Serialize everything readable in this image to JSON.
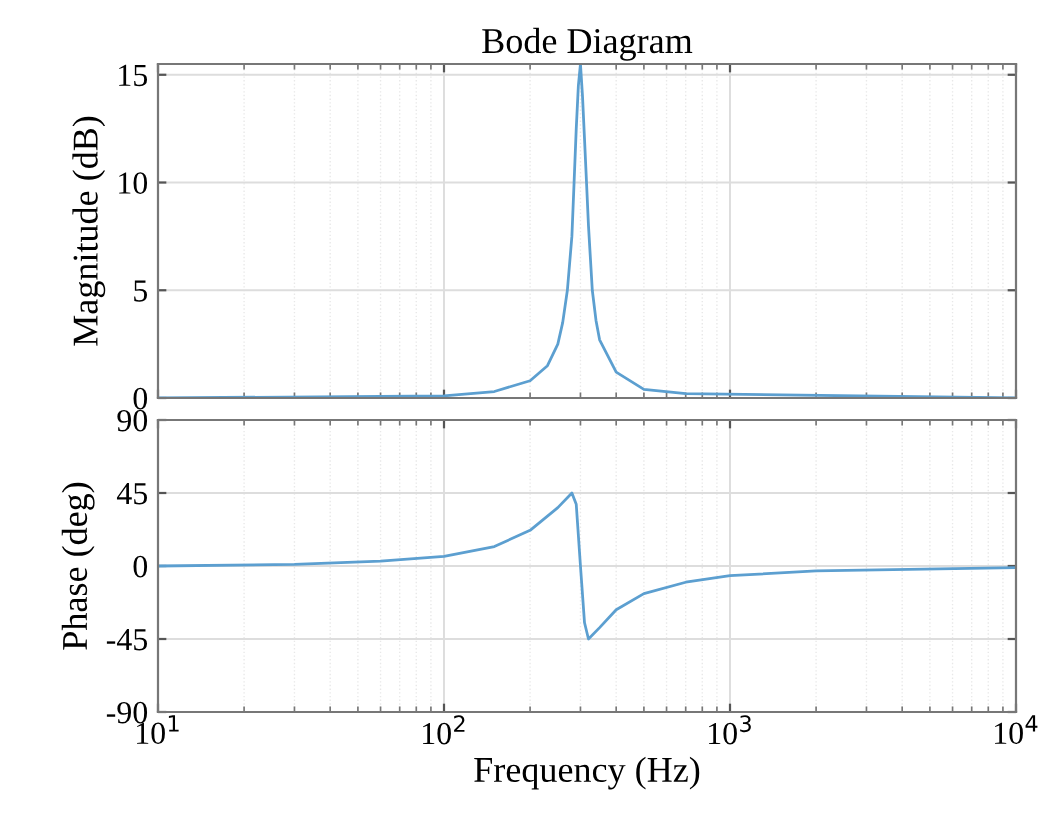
{
  "chart_data": [
    {
      "type": "line",
      "title": "Bode Diagram",
      "ylabel": "Magnitude (dB)",
      "x": [
        10,
        100,
        150,
        200,
        230,
        250,
        260,
        270,
        280,
        285,
        290,
        295,
        300,
        305,
        310,
        315,
        320,
        330,
        340,
        350,
        400,
        500,
        700,
        10000
      ],
      "series": [
        {
          "color": "#5c9fd0",
          "values": [
            0,
            0.1,
            0.3,
            0.8,
            1.5,
            2.5,
            3.5,
            5,
            7.5,
            10,
            12.5,
            14.5,
            15.5,
            14,
            12,
            10,
            8,
            5,
            3.6,
            2.7,
            1.2,
            0.4,
            0.2,
            0
          ]
        }
      ],
      "log": "x",
      "xlim": [
        10,
        10000
      ],
      "ylim": [
        0,
        15.5
      ],
      "yticks": [
        0,
        5,
        10,
        15
      ],
      "xticks": [
        10,
        100,
        1000,
        10000
      ],
      "tick_labels": "y",
      "grid": true
    },
    {
      "type": "line",
      "xlabel": "Frequency (Hz)",
      "ylabel": "Phase (deg)",
      "x": [
        10,
        30,
        60,
        100,
        150,
        200,
        250,
        280,
        290,
        300,
        310,
        320,
        350,
        400,
        500,
        700,
        1000,
        2000,
        10000
      ],
      "series": [
        {
          "color": "#5c9fd0",
          "values": [
            0,
            1,
            3,
            6,
            12,
            22,
            36,
            45,
            38,
            0,
            -35,
            -45,
            -38,
            -27,
            -17,
            -10,
            -6,
            -3,
            -1
          ]
        }
      ],
      "log": "x",
      "xlim": [
        10,
        10000
      ],
      "ylim": [
        -90,
        90
      ],
      "yticks": [
        -90,
        -45,
        0,
        45,
        90
      ],
      "xticks": [
        {
          "value": 10,
          "label": "10$^{1}$"
        },
        {
          "value": 100,
          "label": "10$^{2}$"
        },
        {
          "value": 1000,
          "label": "10$^{3}$"
        },
        {
          "value": 10000,
          "label": "10$^{4}$"
        }
      ],
      "grid": true
    }
  ]
}
